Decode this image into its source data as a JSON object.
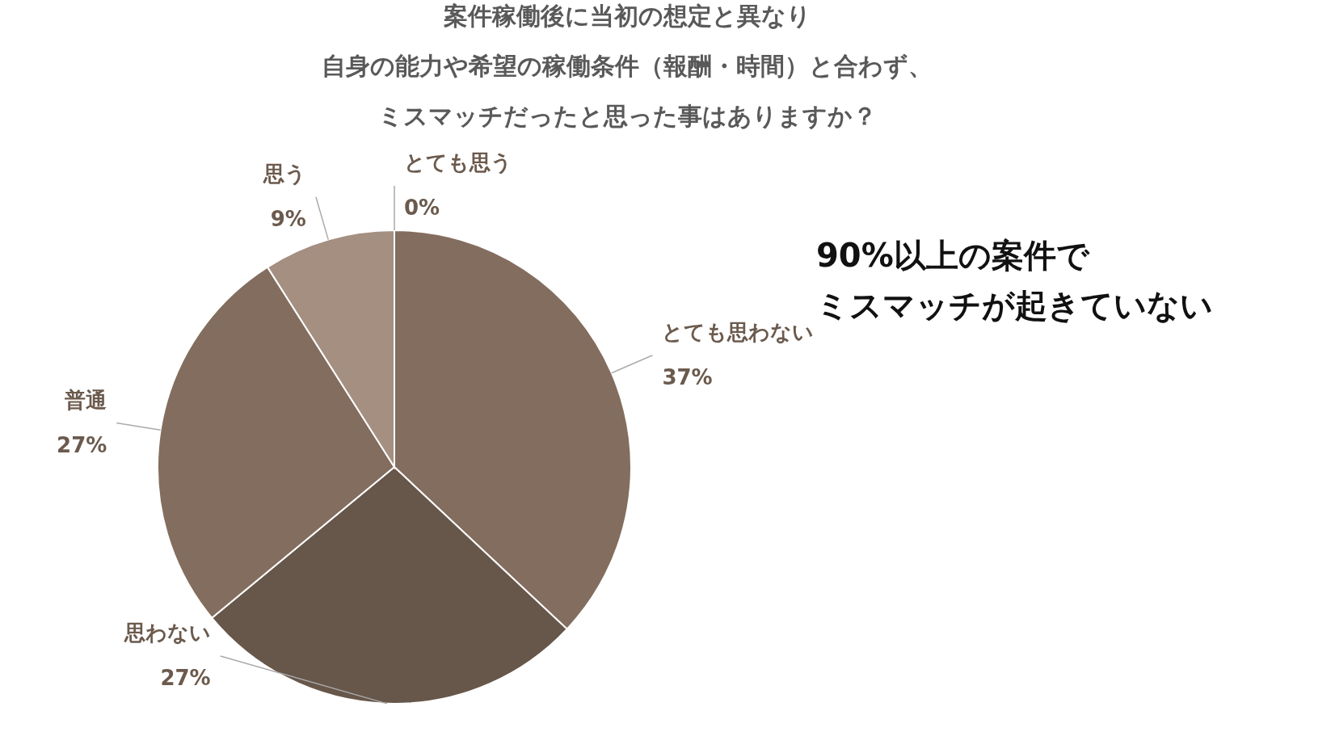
{
  "chart_data": {
    "type": "pie",
    "title": "案件稼働後に当初の想定と異なり自身の能力や希望の稼働条件（報酬・時間）と合わず、ミスマッチだったと思った事はありますか？",
    "categories": [
      "とても思う",
      "とても思わない",
      "思わない",
      "普通",
      "思う"
    ],
    "values": [
      0,
      37,
      27,
      27,
      9
    ],
    "colors": [
      "#67574a",
      "#836d5e",
      "#67574a",
      "#836d5e",
      "#a48f81"
    ],
    "value_labels": [
      "0%",
      "37%",
      "27%",
      "27%",
      "9%"
    ],
    "annotations": [
      "90%以上の案件で",
      "ミスマッチが起きていない"
    ]
  }
}
